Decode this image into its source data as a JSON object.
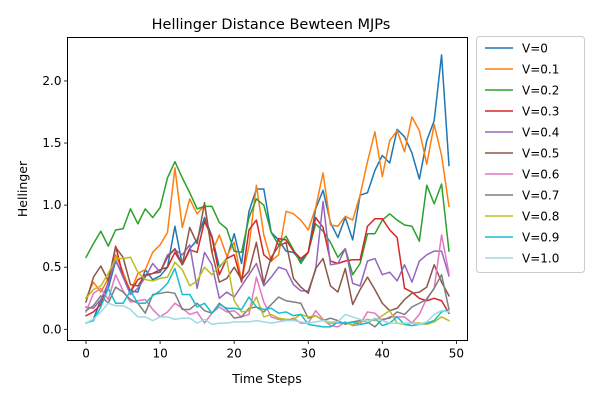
{
  "chart_data": {
    "type": "line",
    "title": "Hellinger Distance Bewteen MJPs",
    "xlabel": "Time Steps",
    "ylabel": "Hellinger",
    "xlim": [
      -2.5,
      51.5
    ],
    "ylim": [
      -0.09,
      2.35
    ],
    "x_ticks": [
      0,
      10,
      20,
      30,
      40,
      50
    ],
    "y_ticks": [
      0.0,
      0.5,
      1.0,
      1.5,
      2.0
    ],
    "grid": false,
    "legend_position": "outside-right-top",
    "x": [
      0,
      1,
      2,
      3,
      4,
      5,
      6,
      7,
      8,
      9,
      10,
      11,
      12,
      13,
      14,
      15,
      16,
      17,
      18,
      19,
      20,
      21,
      22,
      23,
      24,
      25,
      26,
      27,
      28,
      29,
      30,
      31,
      32,
      33,
      34,
      35,
      36,
      37,
      38,
      39,
      40,
      41,
      42,
      43,
      44,
      45,
      46,
      47,
      48,
      49
    ],
    "series": [
      {
        "name": "V=0",
        "color": "#1f77b4",
        "values": [
          0.05,
          0.08,
          0.24,
          0.33,
          0.55,
          0.44,
          0.31,
          0.3,
          0.48,
          0.4,
          0.43,
          0.5,
          0.83,
          0.52,
          0.65,
          0.72,
          0.9,
          0.75,
          0.5,
          0.57,
          0.77,
          0.53,
          0.95,
          1.13,
          1.13,
          0.78,
          0.72,
          0.63,
          0.62,
          0.55,
          0.62,
          0.97,
          1.12,
          0.86,
          0.74,
          0.9,
          0.72,
          1.08,
          1.1,
          1.28,
          1.4,
          1.34,
          1.61,
          1.55,
          1.42,
          1.21,
          1.52,
          1.68,
          2.21,
          1.32
        ]
      },
      {
        "name": "V=0.1",
        "color": "#ff7f0e",
        "values": [
          0.25,
          0.38,
          0.3,
          0.41,
          0.6,
          0.46,
          0.3,
          0.45,
          0.48,
          0.62,
          0.68,
          0.78,
          1.3,
          0.82,
          1.05,
          0.93,
          1.0,
          0.62,
          0.76,
          0.59,
          0.7,
          0.39,
          0.67,
          1.16,
          0.76,
          0.55,
          0.6,
          0.95,
          0.93,
          0.88,
          0.8,
          0.98,
          1.26,
          0.84,
          0.83,
          0.91,
          0.88,
          1.08,
          1.35,
          1.59,
          1.23,
          1.52,
          1.6,
          1.43,
          1.71,
          1.6,
          1.33,
          1.65,
          1.4,
          0.99
        ]
      },
      {
        "name": "V=0.2",
        "color": "#2ca02c",
        "values": [
          0.58,
          0.69,
          0.79,
          0.67,
          0.8,
          0.81,
          0.97,
          0.85,
          0.97,
          0.9,
          0.98,
          1.22,
          1.35,
          1.22,
          1.1,
          0.97,
          0.99,
          0.99,
          0.86,
          0.81,
          0.63,
          0.62,
          0.9,
          1.05,
          1.0,
          0.78,
          0.68,
          0.75,
          0.64,
          0.53,
          0.62,
          0.85,
          0.79,
          0.7,
          0.58,
          0.65,
          0.44,
          0.53,
          0.77,
          0.77,
          0.88,
          0.93,
          0.88,
          0.84,
          0.83,
          0.71,
          1.16,
          1.01,
          1.17,
          0.63
        ]
      },
      {
        "name": "V=0.3",
        "color": "#d62728",
        "values": [
          0.11,
          0.14,
          0.2,
          0.38,
          0.67,
          0.43,
          0.3,
          0.4,
          0.43,
          0.45,
          0.48,
          0.5,
          0.62,
          0.52,
          0.64,
          0.62,
          0.87,
          0.74,
          0.44,
          0.57,
          0.6,
          0.38,
          0.8,
          0.88,
          0.6,
          0.55,
          0.73,
          0.72,
          0.63,
          0.57,
          0.62,
          0.9,
          0.82,
          0.55,
          0.53,
          0.55,
          0.56,
          0.56,
          0.83,
          0.89,
          0.89,
          0.8,
          0.74,
          0.33,
          0.3,
          0.25,
          0.23,
          0.25,
          0.23,
          0.13
        ]
      },
      {
        "name": "V=0.4",
        "color": "#9467bd",
        "values": [
          0.18,
          0.17,
          0.24,
          0.37,
          0.56,
          0.42,
          0.28,
          0.33,
          0.42,
          0.53,
          0.46,
          0.6,
          0.64,
          0.6,
          0.68,
          0.33,
          0.62,
          0.52,
          0.25,
          0.3,
          0.26,
          0.35,
          0.44,
          0.53,
          0.35,
          0.42,
          0.5,
          0.48,
          0.36,
          0.31,
          0.31,
          0.48,
          1.03,
          0.52,
          0.53,
          0.65,
          0.37,
          0.35,
          0.55,
          0.57,
          0.44,
          0.46,
          0.39,
          0.52,
          0.38,
          0.55,
          0.6,
          0.63,
          0.63,
          0.43
        ]
      },
      {
        "name": "V=0.5",
        "color": "#8c564b",
        "values": [
          0.22,
          0.42,
          0.51,
          0.39,
          0.66,
          0.58,
          0.36,
          0.35,
          0.44,
          0.45,
          0.46,
          0.58,
          0.65,
          0.52,
          0.82,
          0.69,
          1.02,
          0.62,
          0.38,
          0.41,
          0.5,
          0.4,
          0.47,
          0.7,
          0.37,
          0.58,
          0.67,
          0.7,
          0.41,
          0.34,
          0.29,
          0.49,
          0.57,
          0.35,
          0.3,
          0.49,
          0.2,
          0.32,
          0.42,
          0.32,
          0.21,
          0.15,
          0.17,
          0.24,
          0.29,
          0.3,
          0.34,
          0.52,
          0.38,
          0.27
        ]
      },
      {
        "name": "V=0.6",
        "color": "#e377c2",
        "values": [
          0.14,
          0.29,
          0.33,
          0.24,
          0.44,
          0.31,
          0.22,
          0.23,
          0.24,
          0.16,
          0.1,
          0.14,
          0.21,
          0.17,
          0.12,
          0.14,
          0.05,
          0.13,
          0.18,
          0.14,
          0.15,
          0.1,
          0.12,
          0.42,
          0.22,
          0.1,
          0.08,
          0.07,
          0.09,
          0.05,
          0.05,
          0.15,
          0.08,
          0.03,
          0.02,
          0.06,
          0.03,
          0.04,
          0.14,
          0.13,
          0.07,
          0.1,
          0.1,
          0.1,
          0.05,
          0.12,
          0.25,
          0.33,
          0.76,
          0.45
        ]
      },
      {
        "name": "V=0.7",
        "color": "#7f7f7f",
        "values": [
          0.15,
          0.19,
          0.27,
          0.21,
          0.34,
          0.3,
          0.24,
          0.21,
          0.13,
          0.28,
          0.29,
          0.3,
          0.29,
          0.16,
          0.16,
          0.21,
          0.15,
          0.13,
          0.21,
          0.16,
          0.09,
          0.1,
          0.17,
          0.18,
          0.14,
          0.2,
          0.26,
          0.23,
          0.22,
          0.21,
          0.09,
          0.11,
          0.07,
          0.09,
          0.07,
          0.04,
          0.06,
          0.07,
          0.06,
          0.02,
          0.08,
          0.09,
          0.14,
          0.12,
          0.18,
          0.21,
          0.24,
          0.33,
          0.44,
          0.16
        ]
      },
      {
        "name": "V=0.8",
        "color": "#bcbd22",
        "values": [
          0.25,
          0.32,
          0.35,
          0.45,
          0.57,
          0.57,
          0.58,
          0.46,
          0.4,
          0.39,
          0.41,
          0.42,
          0.54,
          0.48,
          0.35,
          0.39,
          0.5,
          0.44,
          0.51,
          0.56,
          0.23,
          0.14,
          0.15,
          0.26,
          0.1,
          0.12,
          0.09,
          0.08,
          0.08,
          0.12,
          0.1,
          0.11,
          0.07,
          0.05,
          0.05,
          0.05,
          0.04,
          0.06,
          0.08,
          0.07,
          0.11,
          0.15,
          0.05,
          0.04,
          0.05,
          0.05,
          0.04,
          0.06,
          0.1,
          0.07
        ]
      },
      {
        "name": "V=0.9",
        "color": "#17becf",
        "values": [
          0.05,
          0.07,
          0.18,
          0.33,
          0.21,
          0.21,
          0.31,
          0.21,
          0.21,
          0.27,
          0.31,
          0.37,
          0.49,
          0.28,
          0.28,
          0.18,
          0.21,
          0.13,
          0.2,
          0.17,
          0.17,
          0.16,
          0.26,
          0.18,
          0.16,
          0.17,
          0.13,
          0.14,
          0.11,
          0.12,
          0.04,
          0.03,
          0.02,
          0.02,
          0.06,
          0.05,
          0.06,
          0.04,
          0.05,
          0.09,
          0.03,
          0.05,
          0.1,
          0.04,
          0.03,
          0.04,
          0.05,
          0.07,
          0.14,
          0.16
        ]
      },
      {
        "name": "V=1.0",
        "color": "#9edae5",
        "values": [
          0.05,
          0.08,
          0.14,
          0.21,
          0.19,
          0.19,
          0.16,
          0.1,
          0.1,
          0.07,
          0.1,
          0.1,
          0.08,
          0.09,
          0.09,
          0.05,
          0.08,
          0.04,
          0.05,
          0.05,
          0.06,
          0.06,
          0.06,
          0.07,
          0.06,
          0.05,
          0.06,
          0.07,
          0.07,
          0.06,
          0.05,
          0.06,
          0.07,
          0.06,
          0.06,
          0.12,
          0.1,
          0.08,
          0.06,
          0.09,
          0.07,
          0.05,
          0.05,
          0.05,
          0.05,
          0.04,
          0.06,
          0.12,
          0.15,
          0.14
        ]
      }
    ]
  }
}
